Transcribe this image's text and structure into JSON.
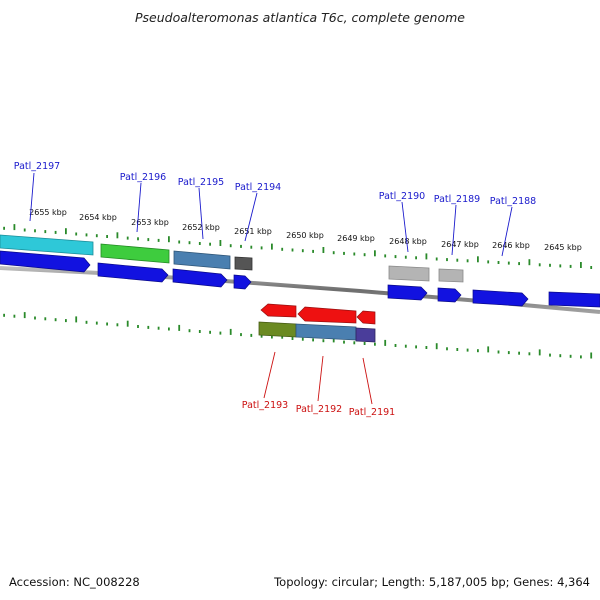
{
  "title": "Pseudoalteromonas atlantica T6c, complete genome",
  "footer": {
    "accession": "Accession: NC_008228",
    "summary": "Topology: circular; Length: 5,187,005 bp; Genes: 4,364"
  },
  "ticks": [
    "2655 kbp",
    "2654 kbp",
    "2653 kbp",
    "2652 kbp",
    "2651 kbp",
    "2650 kbp",
    "2649 kbp",
    "2648 kbp",
    "2647 kbp",
    "2646 kbp",
    "2645 kbp"
  ],
  "genes_top": [
    "Patl_2197",
    "Patl_2196",
    "Patl_2195",
    "Patl_2194",
    "Patl_2190",
    "Patl_2189",
    "Patl_2188"
  ],
  "genes_bottom": [
    "Patl_2193",
    "Patl_2192",
    "Patl_2191"
  ],
  "colors": {
    "cds": "#1212e0",
    "cyan": "#2ec8d8",
    "green": "#3ecc3e",
    "steel": "#4a7fb0",
    "dark_gray": "#555555",
    "light_gray": "#b4b4b4",
    "red": "#ee1111",
    "olive": "#6b8a22",
    "violet": "#4a3d9a",
    "tick": "#2a8a2a",
    "backbone": "#777777",
    "label_top": "#1a1acc",
    "label_bottom": "#cc1111"
  }
}
